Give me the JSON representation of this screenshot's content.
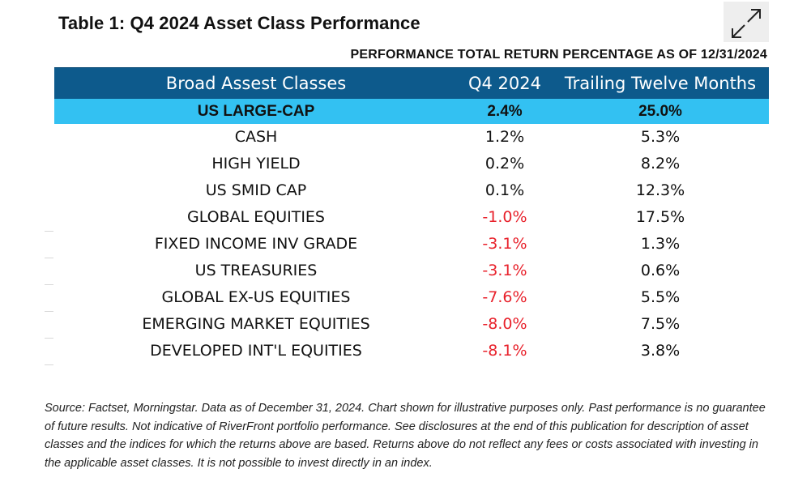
{
  "title": "Table 1: Q4 2024 Asset Class Performance",
  "expand_icon": "expand-arrows-icon",
  "subtitle": "PERFORMANCE TOTAL RETURN PERCENTAGE AS OF 12/31/2024",
  "table": {
    "headers": [
      "Broad Assest Classes",
      "Q4 2024",
      "Trailing Twelve Months"
    ],
    "rows": [
      {
        "asset": "US LARGE-CAP",
        "q4": "2.4%",
        "ttm": "25.0%"
      },
      {
        "asset": "CASH",
        "q4": "1.2%",
        "ttm": "5.3%"
      },
      {
        "asset": "HIGH YIELD",
        "q4": "0.2%",
        "ttm": "8.2%"
      },
      {
        "asset": "US SMID CAP",
        "q4": "0.1%",
        "ttm": "12.3%"
      },
      {
        "asset": "GLOBAL EQUITIES",
        "q4": "-1.0%",
        "ttm": "17.5%"
      },
      {
        "asset": "FIXED INCOME INV GRADE",
        "q4": "-3.1%",
        "ttm": "1.3%"
      },
      {
        "asset": "US TREASURIES",
        "q4": "-3.1%",
        "ttm": "0.6%"
      },
      {
        "asset": "GLOBAL EX-US EQUITIES",
        "q4": "-7.6%",
        "ttm": "5.5%"
      },
      {
        "asset": "EMERGING MARKET EQUITIES",
        "q4": "-8.0%",
        "ttm": "7.5%"
      },
      {
        "asset": "DEVELOPED INT'L EQUITIES",
        "q4": "-8.1%",
        "ttm": "3.8%"
      }
    ]
  },
  "source": "Source: Factset, Morningstar. Data as of December 31, 2024. Chart shown for illustrative purposes only. Past performance is no guarantee of future results. Not indicative of RiverFront portfolio performance. See disclosures at the end of this publication for description of asset classes and the indices for which the returns above are based. Returns above do not reflect any fees or costs associated with investing in the applicable asset classes. It is not possible to invest directly in an index.",
  "colors": {
    "header_bg": "#0d5a8c",
    "highlight_bg": "#33c1f2",
    "negative": "#e8212b"
  }
}
